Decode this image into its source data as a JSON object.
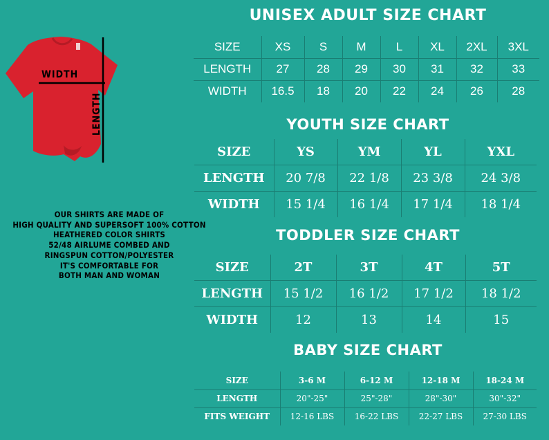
{
  "shirt": {
    "color": "#d9222e",
    "width_label": "WIDTH",
    "length_label": "LENGTH"
  },
  "note_lines": [
    "OUR SHIRTS ARE MADE OF",
    "HIGH QUALITY AND SUPERSOFT 100% COTTON",
    "HEATHERED COLOR SHIRTS",
    "52/48 AIRLUME COMBED AND",
    "RINGSPUN COTTON/POLYESTER",
    "IT'S COMFORTABLE FOR",
    "BOTH MAN AND WOMAN"
  ],
  "charts": {
    "adult": {
      "title": "UNISEX ADULT SIZE CHART",
      "rows": [
        [
          "SIZE",
          "XS",
          "S",
          "M",
          "L",
          "XL",
          "2XL",
          "3XL"
        ],
        [
          "LENGTH",
          "27",
          "28",
          "29",
          "30",
          "31",
          "32",
          "33"
        ],
        [
          "WIDTH",
          "16.5",
          "18",
          "20",
          "22",
          "24",
          "26",
          "28"
        ]
      ]
    },
    "youth": {
      "title": "YOUTH SIZE CHART",
      "rows": [
        [
          "SIZE",
          "YS",
          "YM",
          "YL",
          "YXL"
        ],
        [
          "LENGTH",
          "20 7/8",
          "22 1/8",
          "23 3/8",
          "24 3/8"
        ],
        [
          "WIDTH",
          "15 1/4",
          "16 1/4",
          "17 1/4",
          "18 1/4"
        ]
      ]
    },
    "toddler": {
      "title": "TODDLER SIZE CHART",
      "rows": [
        [
          "SIZE",
          "2T",
          "3T",
          "4T",
          "5T"
        ],
        [
          "LENGTH",
          "15 1/2",
          "16 1/2",
          "17 1/2",
          "18 1/2"
        ],
        [
          "WIDTH",
          "12",
          "13",
          "14",
          "15"
        ]
      ]
    },
    "baby": {
      "title": "BABY SIZE CHART",
      "rows": [
        [
          "SIZE",
          "3-6 M",
          "6-12 M",
          "12-18 M",
          "18-24 M"
        ],
        [
          "LENGTH",
          "20\"-25\"",
          "25\"-28\"",
          "28\"-30\"",
          "30\"-32\""
        ],
        [
          "FITS WEIGHT",
          "12-16 LBS",
          "16-22 LBS",
          "22-27 LBS",
          "27-30 LBS"
        ]
      ]
    }
  },
  "colors": {
    "background": "#22a697",
    "text": "#ffffff",
    "note_text": "#000000",
    "grid_line": "#1a7e73"
  }
}
